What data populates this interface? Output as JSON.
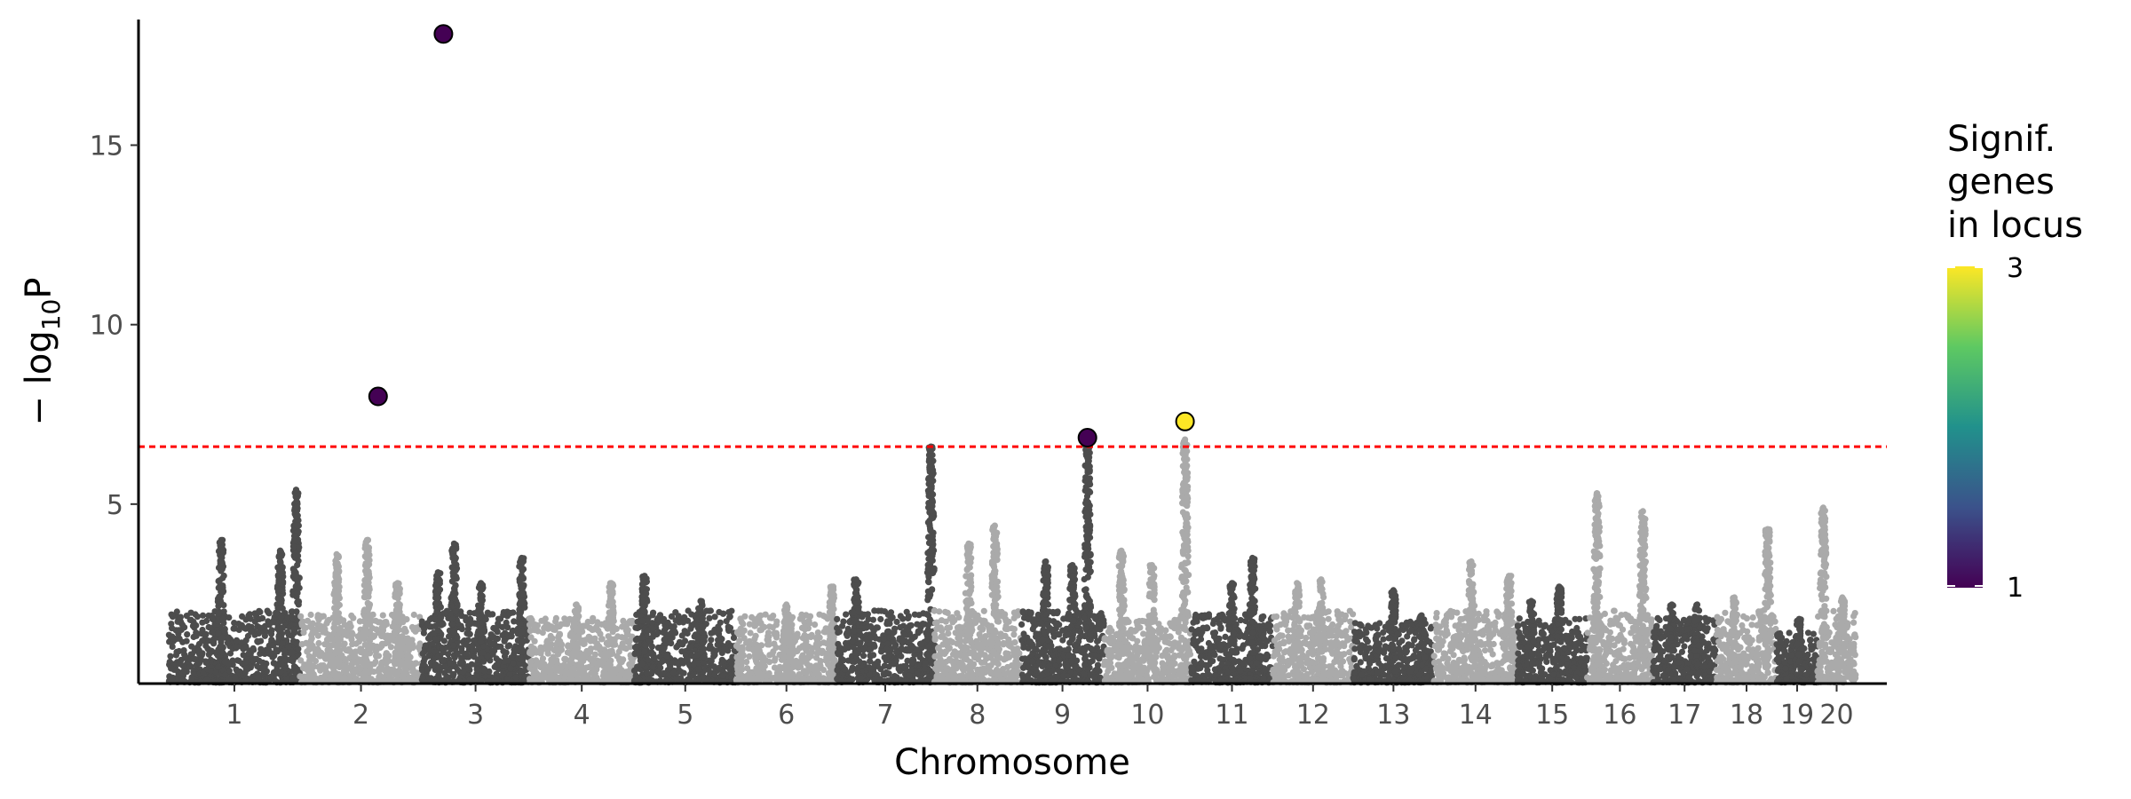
{
  "chart_data": {
    "type": "scatter",
    "subtype": "manhattan",
    "xlabel": "Chromosome",
    "ylabel": "−log10P",
    "ylabel_parts": {
      "prefix": "− log",
      "subscript": "10",
      "suffix": "P"
    },
    "ylim": [
      0,
      18.5
    ],
    "yticks": [
      5,
      10,
      15
    ],
    "grid": false,
    "threshold": {
      "value": 6.6,
      "color": "#ff0000",
      "style": "dashed"
    },
    "point_colors": {
      "dark": "#4d4d4d",
      "light": "#aaaaaa"
    },
    "chromosomes": [
      {
        "label": "1",
        "length": 196,
        "baseline": 2.0,
        "peaks": [
          [
            0.4,
            4.0
          ],
          [
            0.85,
            3.7
          ],
          [
            0.97,
            5.4
          ]
        ]
      },
      {
        "label": "2",
        "length": 182,
        "baseline": 1.9,
        "peaks": [
          [
            0.3,
            3.6
          ],
          [
            0.55,
            4.0
          ],
          [
            0.8,
            2.8
          ]
        ]
      },
      {
        "label": "3",
        "length": 160,
        "baseline": 2.0,
        "peaks": [
          [
            0.15,
            3.1
          ],
          [
            0.3,
            3.9
          ],
          [
            0.55,
            2.8
          ],
          [
            0.93,
            3.5
          ]
        ]
      },
      {
        "label": "4",
        "length": 157,
        "baseline": 1.8,
        "peaks": [
          [
            0.45,
            2.2
          ],
          [
            0.78,
            2.8
          ]
        ]
      },
      {
        "label": "5",
        "length": 152,
        "baseline": 2.0,
        "peaks": [
          [
            0.1,
            3.0
          ],
          [
            0.65,
            2.3
          ]
        ]
      },
      {
        "label": "6",
        "length": 150,
        "baseline": 1.9,
        "peaks": [
          [
            0.5,
            2.2
          ],
          [
            0.95,
            2.7
          ]
        ]
      },
      {
        "label": "7",
        "length": 145,
        "baseline": 2.0,
        "peaks": [
          [
            0.2,
            2.9
          ],
          [
            0.97,
            6.6
          ]
        ]
      },
      {
        "label": "8",
        "length": 130,
        "baseline": 2.0,
        "peaks": [
          [
            0.4,
            3.9
          ],
          [
            0.7,
            4.4
          ]
        ]
      },
      {
        "label": "9",
        "length": 124,
        "baseline": 2.0,
        "peaks": [
          [
            0.3,
            3.4
          ],
          [
            0.62,
            3.3
          ],
          [
            0.8,
            6.85
          ]
        ]
      },
      {
        "label": "10",
        "length": 130,
        "baseline": 1.8,
        "peaks": [
          [
            0.2,
            3.7
          ],
          [
            0.55,
            3.3
          ],
          [
            0.93,
            6.8
          ]
        ]
      },
      {
        "label": "11",
        "length": 122,
        "baseline": 1.9,
        "peaks": [
          [
            0.5,
            2.8
          ],
          [
            0.75,
            3.5
          ]
        ]
      },
      {
        "label": "12",
        "length": 120,
        "baseline": 2.0,
        "peaks": [
          [
            0.3,
            2.8
          ],
          [
            0.6,
            2.9
          ]
        ]
      },
      {
        "label": "13",
        "length": 120,
        "baseline": 1.7,
        "peaks": [
          [
            0.5,
            2.6
          ],
          [
            0.85,
            1.9
          ]
        ]
      },
      {
        "label": "14",
        "length": 125,
        "baseline": 2.0,
        "peaks": [
          [
            0.45,
            3.4
          ],
          [
            0.9,
            3.0
          ]
        ]
      },
      {
        "label": "15",
        "length": 104,
        "baseline": 1.8,
        "peaks": [
          [
            0.2,
            2.3
          ],
          [
            0.6,
            2.7
          ]
        ]
      },
      {
        "label": "16",
        "length": 98,
        "baseline": 2.0,
        "peaks": [
          [
            0.15,
            5.3
          ],
          [
            0.85,
            4.8
          ]
        ]
      },
      {
        "label": "17",
        "length": 95,
        "baseline": 1.8,
        "peaks": [
          [
            0.3,
            2.2
          ],
          [
            0.7,
            2.2
          ]
        ]
      },
      {
        "label": "18",
        "length": 90,
        "baseline": 2.0,
        "peaks": [
          [
            0.3,
            2.4
          ],
          [
            0.85,
            4.3
          ]
        ]
      },
      {
        "label": "19",
        "length": 61,
        "baseline": 1.4,
        "peaks": [
          [
            0.55,
            1.8
          ]
        ]
      },
      {
        "label": "20",
        "length": 57,
        "baseline": 2.0,
        "peaks": [
          [
            0.15,
            4.9
          ],
          [
            0.65,
            2.4
          ]
        ]
      }
    ],
    "highlight_points": [
      {
        "chromosome": "2",
        "position_fraction": 0.64,
        "y": 8.0,
        "signif_genes": 1
      },
      {
        "chromosome": "3",
        "position_fraction": 0.2,
        "y": 18.1,
        "signif_genes": 1
      },
      {
        "chromosome": "9",
        "position_fraction": 0.8,
        "y": 6.85,
        "signif_genes": 1
      },
      {
        "chromosome": "10",
        "position_fraction": 0.93,
        "y": 7.3,
        "signif_genes": 3
      }
    ],
    "legend": {
      "title_lines": [
        "Signif.",
        "genes",
        "in locus"
      ],
      "min_label": "1",
      "max_label": "3",
      "colormap": [
        "#440154",
        "#3b528b",
        "#21918c",
        "#5ec962",
        "#fde725"
      ],
      "placement": "right"
    }
  }
}
